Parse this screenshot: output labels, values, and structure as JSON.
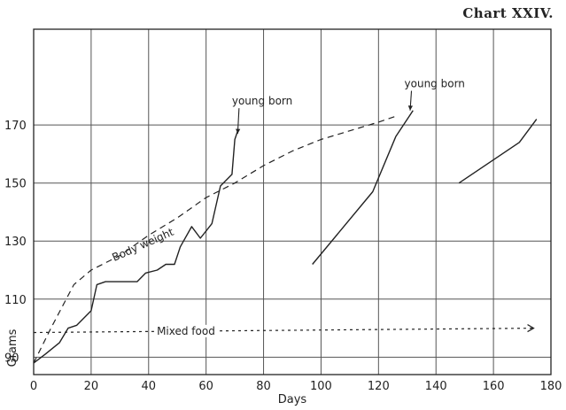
{
  "chart_data": {
    "type": "line",
    "title": "Chart XXIV.",
    "xlabel": "Days",
    "ylabel": "Grams",
    "xlim": [
      0,
      180
    ],
    "ylim": [
      84,
      203
    ],
    "grid": true,
    "x_ticks": [
      0,
      20,
      40,
      60,
      80,
      100,
      120,
      140,
      160,
      180
    ],
    "y_ticks": [
      90,
      110,
      130,
      150,
      170
    ],
    "series": [
      {
        "name": "Body weight",
        "style": "dashed",
        "points": [
          [
            0,
            88
          ],
          [
            6,
            100
          ],
          [
            14,
            115
          ],
          [
            20,
            120
          ],
          [
            30,
            125
          ],
          [
            40,
            132
          ],
          [
            50,
            138
          ],
          [
            60,
            145
          ],
          [
            70,
            150
          ],
          [
            80,
            156
          ],
          [
            90,
            161
          ],
          [
            100,
            165
          ],
          [
            110,
            168
          ],
          [
            120,
            171
          ],
          [
            126,
            173
          ]
        ]
      },
      {
        "name": "",
        "style": "solid",
        "points": [
          [
            0,
            88
          ],
          [
            4,
            91
          ],
          [
            9,
            95
          ],
          [
            12,
            100
          ],
          [
            15,
            101
          ],
          [
            20,
            106
          ],
          [
            22,
            115
          ],
          [
            25,
            116
          ],
          [
            29,
            116
          ],
          [
            31,
            116
          ],
          [
            36,
            116
          ],
          [
            39,
            119
          ],
          [
            43,
            120
          ],
          [
            46,
            122
          ],
          [
            49,
            122
          ],
          [
            51,
            128
          ],
          [
            55,
            135
          ],
          [
            58,
            131
          ],
          [
            62,
            136
          ],
          [
            65,
            149
          ],
          [
            69,
            153
          ],
          [
            70,
            165
          ],
          [
            71,
            168
          ]
        ]
      },
      {
        "name": "",
        "style": "solid",
        "points": [
          [
            97,
            122
          ],
          [
            118,
            147
          ],
          [
            126,
            166
          ],
          [
            132,
            175
          ]
        ]
      },
      {
        "name": "",
        "style": "solid",
        "points": [
          [
            148,
            150
          ],
          [
            169,
            164
          ],
          [
            175,
            172
          ]
        ]
      },
      {
        "name": "Mixed food",
        "style": "dotted",
        "points": [
          [
            0,
            98.5
          ],
          [
            174,
            100
          ]
        ]
      }
    ],
    "annotations": [
      {
        "text": "young born",
        "x": 69,
        "y": 177,
        "arrow_to": [
          71,
          167
        ]
      },
      {
        "text": "young born",
        "x": 129,
        "y": 183,
        "arrow_to": [
          131,
          175
        ]
      },
      {
        "text": "Mixed food",
        "x": 53,
        "y": 99
      },
      {
        "text": "Body weight",
        "x": 28,
        "y": 123
      }
    ]
  }
}
